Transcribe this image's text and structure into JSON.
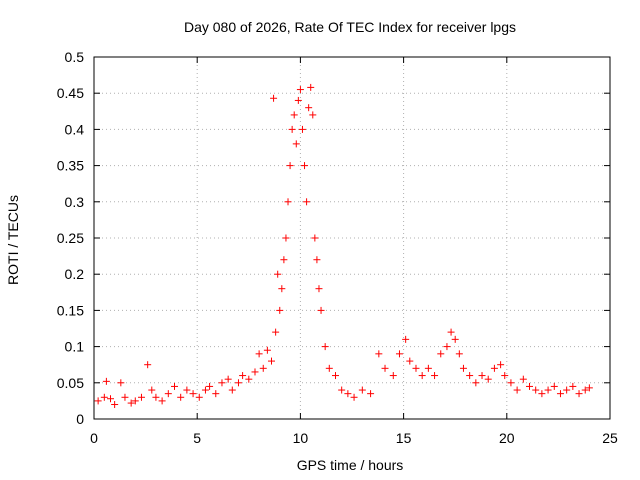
{
  "chart_data": {
    "type": "scatter",
    "title": "Day 080 of 2026, Rate Of TEC Index for receiver lpgs",
    "xlabel": "GPS time / hours",
    "ylabel": "ROTI / TECUs",
    "xlim": [
      0,
      25
    ],
    "ylim": [
      0,
      0.5
    ],
    "x_ticks": [
      0,
      5,
      10,
      15,
      20,
      25
    ],
    "x_tick_labels": [
      "0",
      "5",
      "10",
      "15",
      "20",
      "25"
    ],
    "y_ticks": [
      0,
      0.05,
      0.1,
      0.15,
      0.2,
      0.25,
      0.3,
      0.35,
      0.4,
      0.45,
      0.5
    ],
    "y_tick_labels": [
      "0",
      "0.05",
      "0.1",
      "0.15",
      "0.2",
      "0.25",
      "0.3",
      "0.35",
      "0.4",
      "0.45",
      "0.5"
    ],
    "grid": true,
    "legend": "none",
    "marker": "plus",
    "color": "#ff0000",
    "series": [
      {
        "x": [
          0.2,
          0.5,
          0.6,
          0.8,
          1.0,
          1.3,
          1.5,
          1.8,
          2.0,
          2.3,
          2.6,
          2.8,
          3.0,
          3.3,
          3.6,
          3.9,
          4.2,
          4.5,
          4.8,
          5.1,
          5.4,
          5.6,
          5.9,
          6.2,
          6.5,
          6.7,
          7.0,
          7.2,
          7.5,
          7.8,
          8.0,
          8.2,
          8.4,
          8.6,
          8.7,
          8.8,
          8.9,
          9.0,
          9.1,
          9.2,
          9.3,
          9.4,
          9.5,
          9.6,
          9.7,
          9.8,
          9.9,
          10.0,
          10.1,
          10.2,
          10.3,
          10.4,
          10.5,
          10.6,
          10.7,
          10.8,
          10.9,
          11.0,
          11.2,
          11.4,
          11.7,
          12.0,
          12.3,
          12.6,
          13.0,
          13.4,
          13.8,
          14.1,
          14.5,
          14.8,
          15.1,
          15.3,
          15.6,
          15.9,
          16.2,
          16.5,
          16.8,
          17.1,
          17.3,
          17.5,
          17.7,
          17.9,
          18.2,
          18.5,
          18.8,
          19.1,
          19.4,
          19.7,
          19.9,
          20.2,
          20.5,
          20.8,
          21.1,
          21.4,
          21.7,
          22.0,
          22.3,
          22.6,
          22.9,
          23.2,
          23.5,
          23.8,
          24.0
        ],
        "y": [
          0.025,
          0.03,
          0.052,
          0.028,
          0.02,
          0.05,
          0.03,
          0.022,
          0.025,
          0.03,
          0.075,
          0.04,
          0.03,
          0.025,
          0.035,
          0.045,
          0.03,
          0.04,
          0.035,
          0.03,
          0.04,
          0.045,
          0.035,
          0.05,
          0.055,
          0.04,
          0.05,
          0.06,
          0.055,
          0.065,
          0.09,
          0.07,
          0.095,
          0.08,
          0.443,
          0.12,
          0.2,
          0.15,
          0.18,
          0.22,
          0.25,
          0.3,
          0.35,
          0.4,
          0.42,
          0.38,
          0.44,
          0.455,
          0.4,
          0.35,
          0.3,
          0.43,
          0.458,
          0.42,
          0.25,
          0.22,
          0.18,
          0.15,
          0.1,
          0.07,
          0.06,
          0.04,
          0.035,
          0.03,
          0.04,
          0.035,
          0.09,
          0.07,
          0.06,
          0.09,
          0.11,
          0.08,
          0.07,
          0.06,
          0.07,
          0.06,
          0.09,
          0.1,
          0.12,
          0.11,
          0.09,
          0.07,
          0.06,
          0.05,
          0.06,
          0.055,
          0.07,
          0.075,
          0.06,
          0.05,
          0.04,
          0.055,
          0.045,
          0.04,
          0.035,
          0.04,
          0.045,
          0.035,
          0.04,
          0.045,
          0.035,
          0.04,
          0.043
        ]
      }
    ]
  }
}
